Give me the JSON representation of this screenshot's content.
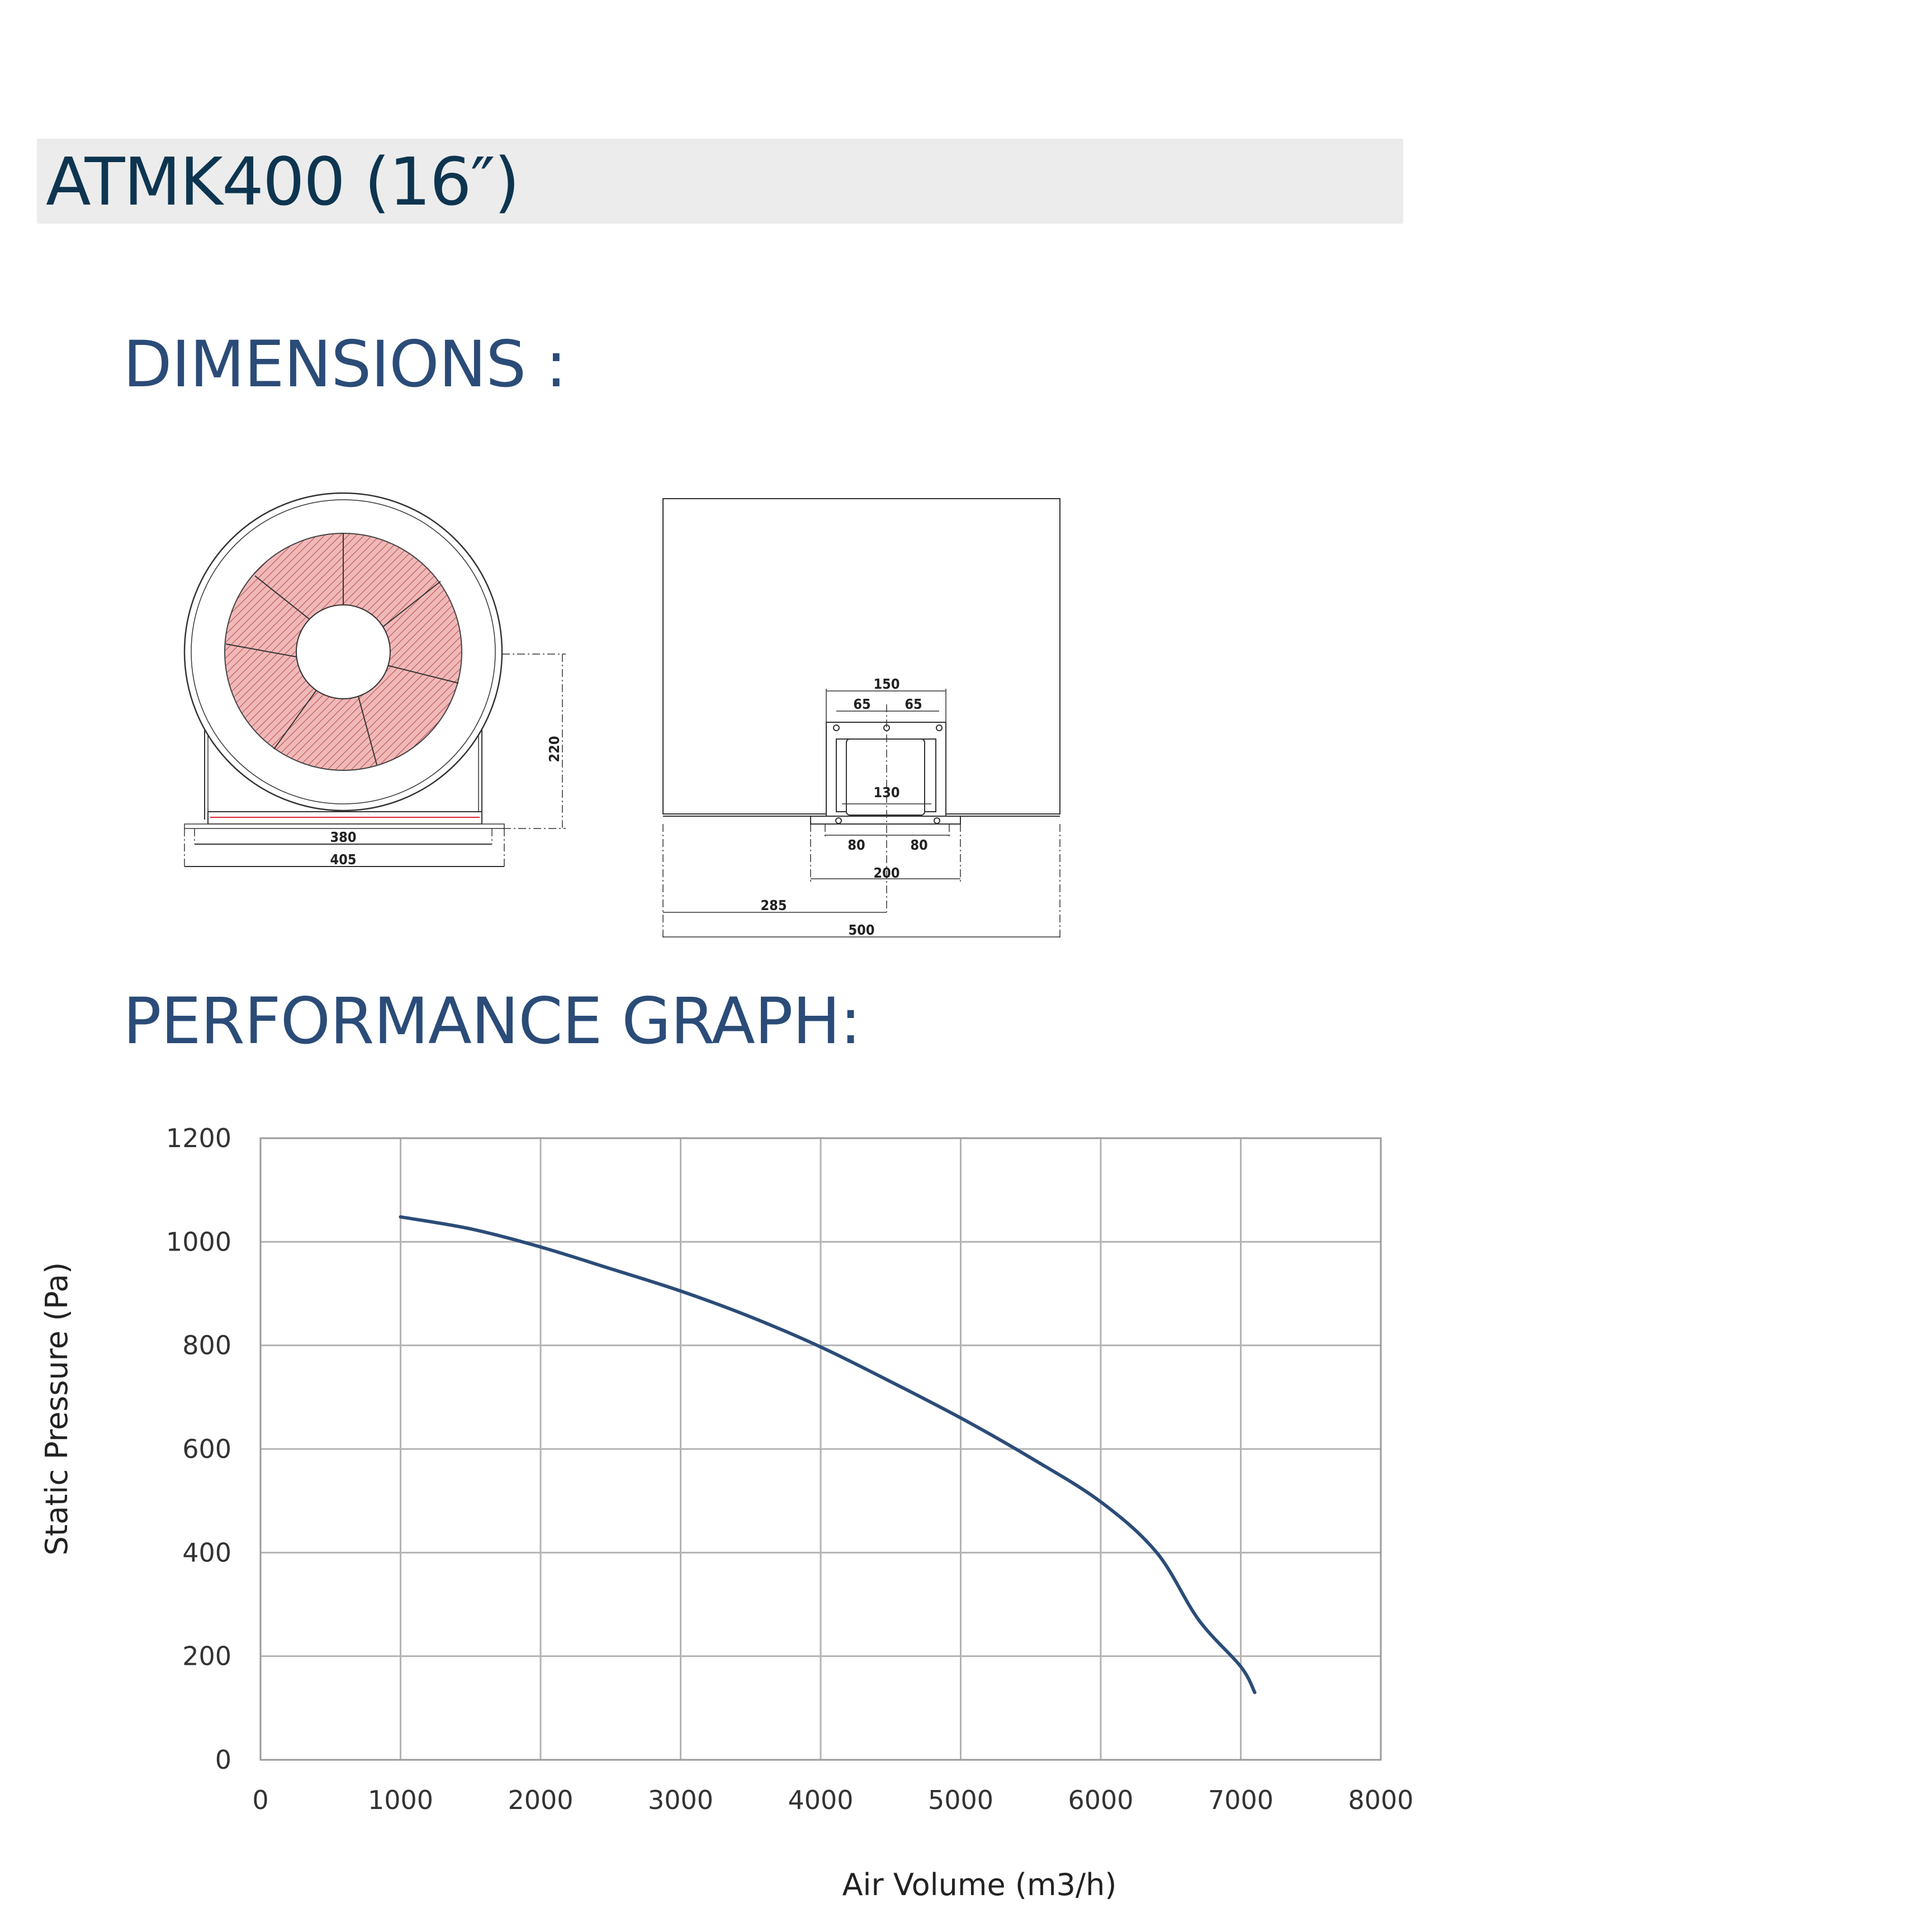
{
  "title": "ATMK400 (16″)",
  "sections": {
    "dimensions": "DIMENSIONS :",
    "performance": "PERFORMANCE GRAPH:"
  },
  "drawing": {
    "front_view": {
      "height": "220",
      "inner_width": "380",
      "outer_width": "405"
    },
    "side_view": {
      "top_width": "150",
      "left_offset": "65",
      "right_offset": "65",
      "inner_width": "130",
      "left_half": "80",
      "right_half": "80",
      "base_width": "200",
      "center_offset": "285",
      "total_width": "500"
    }
  },
  "colors": {
    "heading": "#2b4c78",
    "title": "#0e3550",
    "curve": "#2b4c78",
    "blade": "#e8a8a8"
  },
  "chart_data": {
    "type": "line",
    "xlabel": "Air Volume (m3/h)",
    "ylabel": "Static Pressure (Pa)",
    "xlim": [
      0,
      8000
    ],
    "ylim": [
      0,
      1200
    ],
    "x_ticks": [
      "0",
      "1000",
      "2000",
      "3000",
      "4000",
      "5000",
      "6000",
      "7000",
      "8000"
    ],
    "y_ticks": [
      "0",
      "200",
      "400",
      "600",
      "800",
      "1000",
      "1200"
    ],
    "grid": true,
    "series": [
      {
        "x": [
          1000,
          1500,
          2000,
          2500,
          3000,
          3500,
          4000,
          4500,
          5000,
          5500,
          6000,
          6400,
          6700,
          7000,
          7100
        ],
        "y": [
          1048,
          1025,
          990,
          948,
          905,
          855,
          797,
          730,
          660,
          583,
          498,
          400,
          270,
          180,
          130
        ]
      }
    ]
  }
}
